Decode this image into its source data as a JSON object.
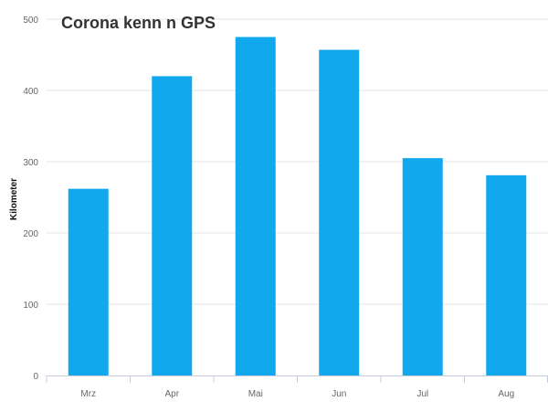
{
  "chart_data": {
    "type": "bar",
    "title": "Corona kenn n GPS",
    "xlabel": "",
    "ylabel": "Kilometer",
    "categories": [
      "Mrz",
      "Apr",
      "Mai",
      "Jun",
      "Jul",
      "Aug"
    ],
    "values": [
      262,
      420,
      475,
      457,
      305,
      281
    ],
    "ylim": [
      0,
      500
    ],
    "yticks": [
      0,
      100,
      200,
      300,
      400,
      500
    ],
    "grid": true,
    "legend": "none",
    "colors": {
      "bar": "#12a8ed",
      "grid": "#e6e6e6",
      "axis": "#c8ccd8",
      "tick_text": "#666666",
      "title_text": "#333333",
      "axis_title_text": "#111111"
    }
  }
}
